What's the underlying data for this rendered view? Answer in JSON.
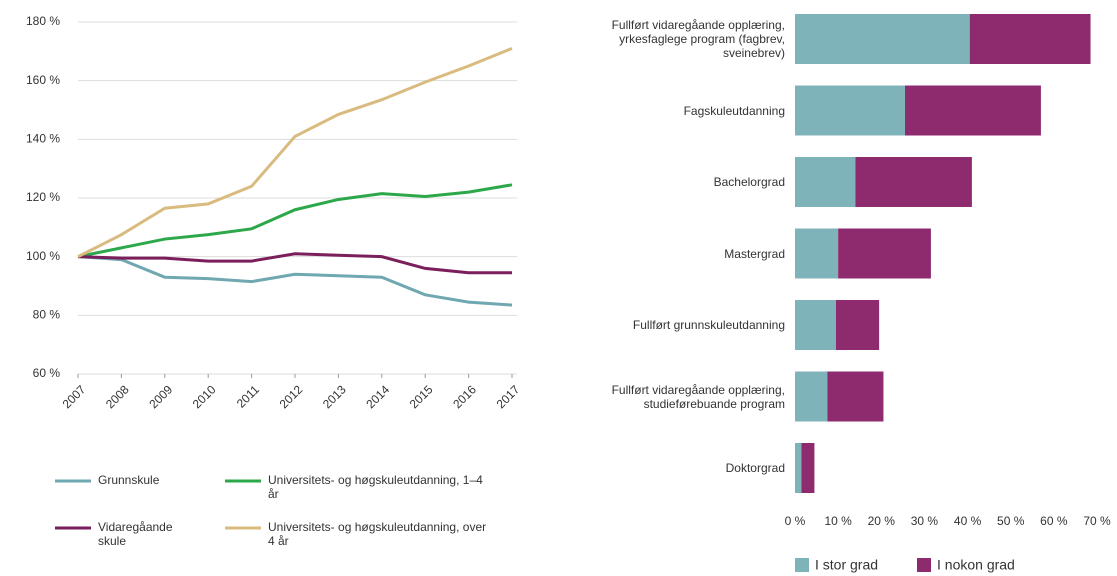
{
  "chart_data": [
    {
      "type": "line",
      "x": [
        2007,
        2008,
        2009,
        2010,
        2011,
        2012,
        2013,
        2014,
        2015,
        2016,
        2017
      ],
      "xticks": [
        2007,
        2008,
        2009,
        2010,
        2011,
        2012,
        2013,
        2014,
        2015,
        2016,
        2017
      ],
      "xlim": [
        2007,
        2017
      ],
      "ylim": [
        60,
        180
      ],
      "yticks": [
        {
          "value": 60,
          "label": "60 %"
        },
        {
          "value": 80,
          "label": "80 %"
        },
        {
          "value": 100,
          "label": "100 %"
        },
        {
          "value": 120,
          "label": "120 %"
        },
        {
          "value": 140,
          "label": "140 %"
        },
        {
          "value": 160,
          "label": "160 %"
        },
        {
          "value": 180,
          "label": "180 %"
        }
      ],
      "series": [
        {
          "name": "Grunnskule",
          "color": "#6fa8b0",
          "values": [
            100,
            99,
            93,
            92.5,
            91.5,
            94,
            93.5,
            93,
            87,
            84.5,
            83.5
          ]
        },
        {
          "name": "Universitets- og høgskuleutdanning, 1–4 år",
          "color": "#2ca84a",
          "values": [
            100,
            103,
            106,
            107.5,
            109.5,
            116,
            119.5,
            121.5,
            120.5,
            122,
            124.5
          ]
        },
        {
          "name": "Vidaregåande skule",
          "color": "#7a1f5c",
          "values": [
            100,
            99.5,
            99.5,
            98.5,
            98.5,
            101,
            100.5,
            100,
            96,
            94.5,
            94.5
          ]
        },
        {
          "name": "Universitets- og høgskuleutdanning, over 4 år",
          "color": "#d9bb7f",
          "values": [
            100,
            107.5,
            116.5,
            118,
            124,
            141,
            148.5,
            153.5,
            159.5,
            165,
            171
          ]
        }
      ]
    },
    {
      "type": "bar",
      "orientation": "horizontal",
      "stacked": true,
      "categories": [
        "Fullført vidaregåande opplæring, yrkesfaglege program (fagbrev, sveinebrev)",
        "Fagskuleutdanning",
        "Bachelorgrad",
        "Mastergrad",
        "Fullført grunnskuleutdanning",
        "Fullført vidaregåande opplæring, studie­førebuande program",
        "Doktorgrad"
      ],
      "xlim": [
        0,
        70
      ],
      "xticks": [
        {
          "value": 0,
          "label": "0 %"
        },
        {
          "value": 10,
          "label": "10 %"
        },
        {
          "value": 20,
          "label": "20 %"
        },
        {
          "value": 30,
          "label": "30 %"
        },
        {
          "value": 40,
          "label": "40 %"
        },
        {
          "value": 50,
          "label": "50 %"
        },
        {
          "value": 60,
          "label": "60 %"
        },
        {
          "value": 70,
          "label": "70 %"
        }
      ],
      "series": [
        {
          "name": "I stor grad",
          "color": "#7fb3ba",
          "values": [
            40.5,
            25.5,
            14,
            10,
            9.5,
            7.5,
            1.5
          ]
        },
        {
          "name": "I nokon grad",
          "color": "#8e2a6e",
          "values": [
            28,
            31.5,
            27,
            21.5,
            10,
            13,
            3
          ]
        }
      ]
    }
  ]
}
